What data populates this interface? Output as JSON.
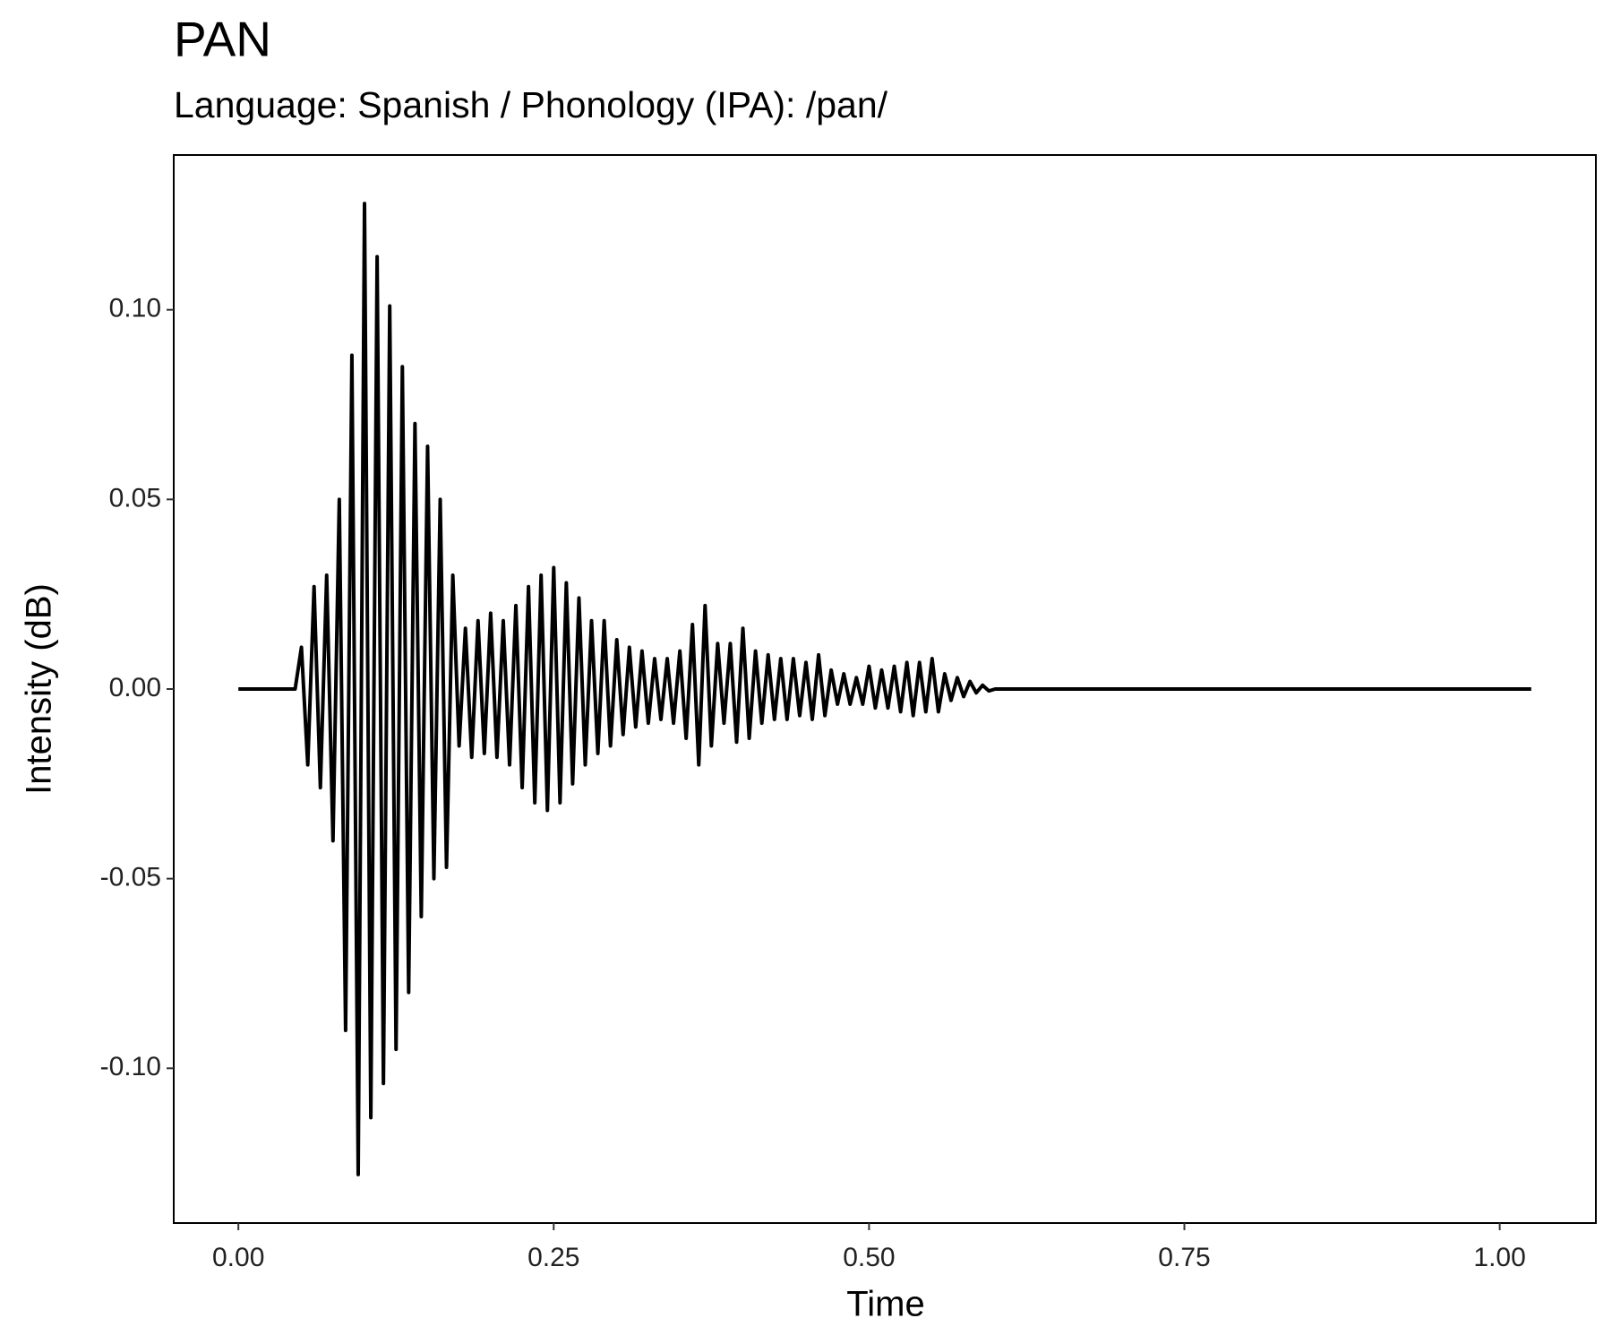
{
  "chart_data": {
    "type": "line",
    "title": "PAN",
    "subtitle": "Language: Spanish / Phonology (IPA): /pan/",
    "x_label": "Time",
    "y_label": "Intensity (dB)",
    "color": "#000000",
    "xlim": [
      -0.05125,
      1.07625
    ],
    "ylim": [
      -0.1408,
      0.1408
    ],
    "xticks": [
      {
        "value": 0,
        "label": "0.00"
      },
      {
        "value": 0.25,
        "label": "0.25"
      },
      {
        "value": 0.5,
        "label": "0.50"
      },
      {
        "value": 0.75,
        "label": "0.75"
      },
      {
        "value": 1,
        "label": "1.00"
      }
    ],
    "yticks": [
      {
        "value": -0.1,
        "label": "-0.10"
      },
      {
        "value": -0.05,
        "label": "-0.05"
      },
      {
        "value": 0,
        "label": "0.00"
      },
      {
        "value": 0.05,
        "label": "0.05"
      },
      {
        "value": 0.1,
        "label": "0.10"
      }
    ],
    "grid": false,
    "x": [
      0,
      0.045,
      0.05,
      0.055,
      0.06,
      0.065,
      0.07,
      0.075,
      0.08,
      0.085,
      0.09,
      0.095,
      0.1,
      0.105,
      0.11,
      0.115,
      0.12,
      0.125,
      0.13,
      0.135,
      0.14,
      0.145,
      0.15,
      0.155,
      0.16,
      0.165,
      0.17,
      0.175,
      0.18,
      0.185,
      0.19,
      0.195,
      0.2,
      0.205,
      0.21,
      0.215,
      0.22,
      0.225,
      0.23,
      0.235,
      0.24,
      0.245,
      0.25,
      0.255,
      0.26,
      0.265,
      0.27,
      0.275,
      0.28,
      0.285,
      0.29,
      0.295,
      0.3,
      0.305,
      0.31,
      0.315,
      0.32,
      0.325,
      0.33,
      0.335,
      0.34,
      0.345,
      0.35,
      0.355,
      0.36,
      0.365,
      0.37,
      0.375,
      0.38,
      0.385,
      0.39,
      0.395,
      0.4,
      0.405,
      0.41,
      0.415,
      0.42,
      0.425,
      0.43,
      0.435,
      0.44,
      0.445,
      0.45,
      0.455,
      0.46,
      0.465,
      0.47,
      0.475,
      0.48,
      0.485,
      0.49,
      0.495,
      0.5,
      0.505,
      0.51,
      0.515,
      0.52,
      0.525,
      0.53,
      0.535,
      0.54,
      0.545,
      0.55,
      0.555,
      0.56,
      0.565,
      0.57,
      0.575,
      0.58,
      0.585,
      0.59,
      0.595,
      0.6,
      1.025
    ],
    "values": [
      0,
      0,
      0.011,
      -0.02,
      0.027,
      -0.026,
      0.03,
      -0.04,
      0.05,
      -0.09,
      0.088,
      -0.128,
      0.128,
      -0.113,
      0.114,
      -0.104,
      0.101,
      -0.095,
      0.085,
      -0.08,
      0.07,
      -0.06,
      0.064,
      -0.05,
      0.05,
      -0.047,
      0.03,
      -0.015,
      0.016,
      -0.018,
      0.018,
      -0.017,
      0.02,
      -0.018,
      0.018,
      -0.02,
      0.022,
      -0.026,
      0.027,
      -0.03,
      0.03,
      -0.032,
      0.032,
      -0.03,
      0.028,
      -0.025,
      0.024,
      -0.02,
      0.018,
      -0.017,
      0.018,
      -0.015,
      0.013,
      -0.012,
      0.011,
      -0.01,
      0.01,
      -0.009,
      0.008,
      -0.008,
      0.008,
      -0.009,
      0.01,
      -0.013,
      0.017,
      -0.02,
      0.022,
      -0.015,
      0.012,
      -0.009,
      0.012,
      -0.014,
      0.016,
      -0.013,
      0.01,
      -0.009,
      0.009,
      -0.008,
      0.008,
      -0.008,
      0.008,
      -0.007,
      0.007,
      -0.008,
      0.009,
      -0.007,
      0.005,
      -0.004,
      0.004,
      -0.004,
      0.003,
      -0.004,
      0.006,
      -0.005,
      0.005,
      -0.005,
      0.006,
      -0.006,
      0.007,
      -0.007,
      0.007,
      -0.006,
      0.008,
      -0.006,
      0.004,
      -0.003,
      0.003,
      -0.002,
      0.002,
      -0.001,
      0.001,
      -0.0005,
      0,
      0
    ]
  }
}
